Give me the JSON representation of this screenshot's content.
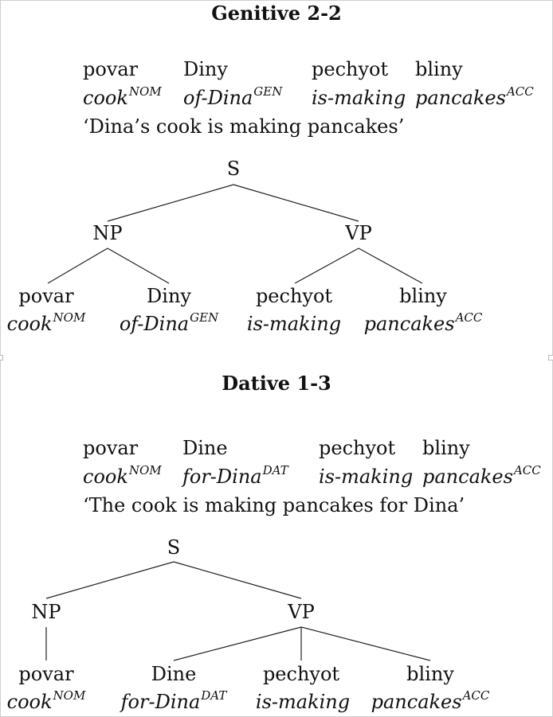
{
  "sections": [
    {
      "title": "Genitive 2-2",
      "gloss": {
        "words": [
          "povar",
          "Diny",
          "pechyot",
          "bliny"
        ],
        "glosses": [
          "cook",
          "of-Dina",
          "is-making",
          "pancakes"
        ],
        "cases": [
          "NOM",
          "GEN",
          "",
          "ACC"
        ],
        "translation": "‘Dina’s cook is making pancakes’"
      },
      "tree": {
        "root": "S",
        "phrases": [
          "NP",
          "VP"
        ],
        "leaves": [
          {
            "word": "povar",
            "gloss": "cook",
            "case": "NOM"
          },
          {
            "word": "Diny",
            "gloss": "of-Dina",
            "case": "GEN"
          },
          {
            "word": "pechyot",
            "gloss": "is-making",
            "case": ""
          },
          {
            "word": "bliny",
            "gloss": "pancakes",
            "case": "ACC"
          }
        ]
      }
    },
    {
      "title": "Dative 1-3",
      "gloss": {
        "words": [
          "povar",
          "Dine",
          "pechyot",
          "bliny"
        ],
        "glosses": [
          "cook",
          "for-Dina",
          "is-making",
          "pancakes"
        ],
        "cases": [
          "NOM",
          "DAT",
          "",
          "ACC"
        ],
        "translation": "‘The cook is making pancakes for Dina’"
      },
      "tree": {
        "root": "S",
        "phrases": [
          "NP",
          "VP"
        ],
        "leaves": [
          {
            "word": "povar",
            "gloss": "cook",
            "case": "NOM"
          },
          {
            "word": "Dine",
            "gloss": "for-Dina",
            "case": "DAT"
          },
          {
            "word": "pechyot",
            "gloss": "is-making",
            "case": ""
          },
          {
            "word": "bliny",
            "gloss": "pancakes",
            "case": "ACC"
          }
        ]
      }
    }
  ]
}
